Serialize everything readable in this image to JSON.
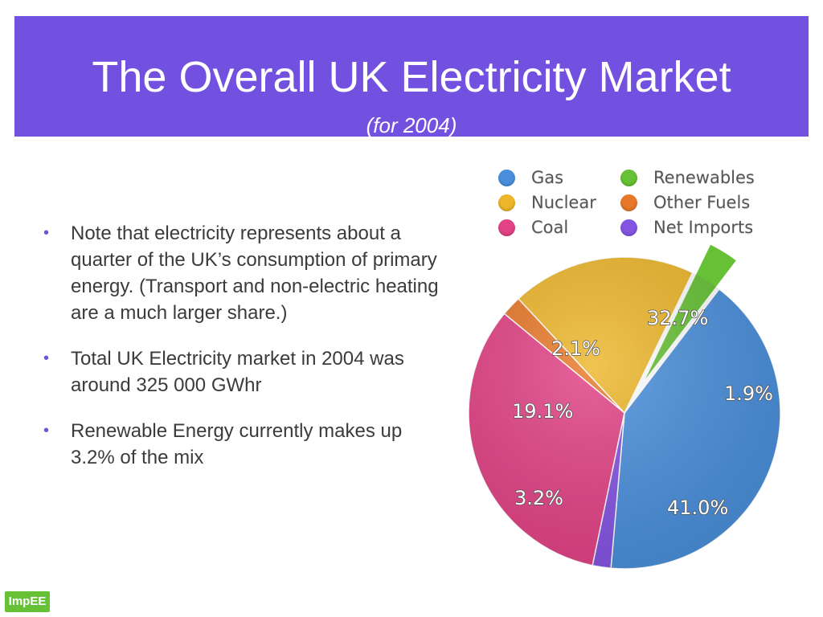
{
  "header": {
    "title": "The Overall UK Electricity Market",
    "subtitle": "(for 2004)",
    "color": "#7351e0"
  },
  "bullets": [
    "Note that electricity represents about a quarter of the UK’s consumption of primary energy. (Transport and non-electric heating are a much larger share.)",
    "Total UK Electricity market in 2004 was around 325 000 GWhr",
    "Renewable Energy currently makes up 3.2% of the mix"
  ],
  "bullet_glyph": "•",
  "logo": {
    "text": "ImpEE",
    "color": "#67c136"
  },
  "chart_data": {
    "type": "pie",
    "legend_position": "top-right",
    "series": [
      {
        "name": "Gas",
        "value": 41.0,
        "label": "41.0%",
        "color": "#4a8fdb"
      },
      {
        "name": "Renewables",
        "value": 3.2,
        "label": "3.2%",
        "color": "#67c136",
        "exploded": true
      },
      {
        "name": "Nuclear",
        "value": 19.1,
        "label": "19.1%",
        "color": "#edb62b"
      },
      {
        "name": "Other Fuels",
        "value": 2.1,
        "label": "2.1%",
        "color": "#e8792a"
      },
      {
        "name": "Coal",
        "value": 32.7,
        "label": "32.7%",
        "color": "#e24286"
      },
      {
        "name": "Net Imports",
        "value": 1.9,
        "label": "1.9%",
        "color": "#8454e3"
      }
    ],
    "legend": [
      "Gas",
      "Nuclear",
      "Coal",
      "Renewables",
      "Other Fuels",
      "Net Imports"
    ]
  }
}
